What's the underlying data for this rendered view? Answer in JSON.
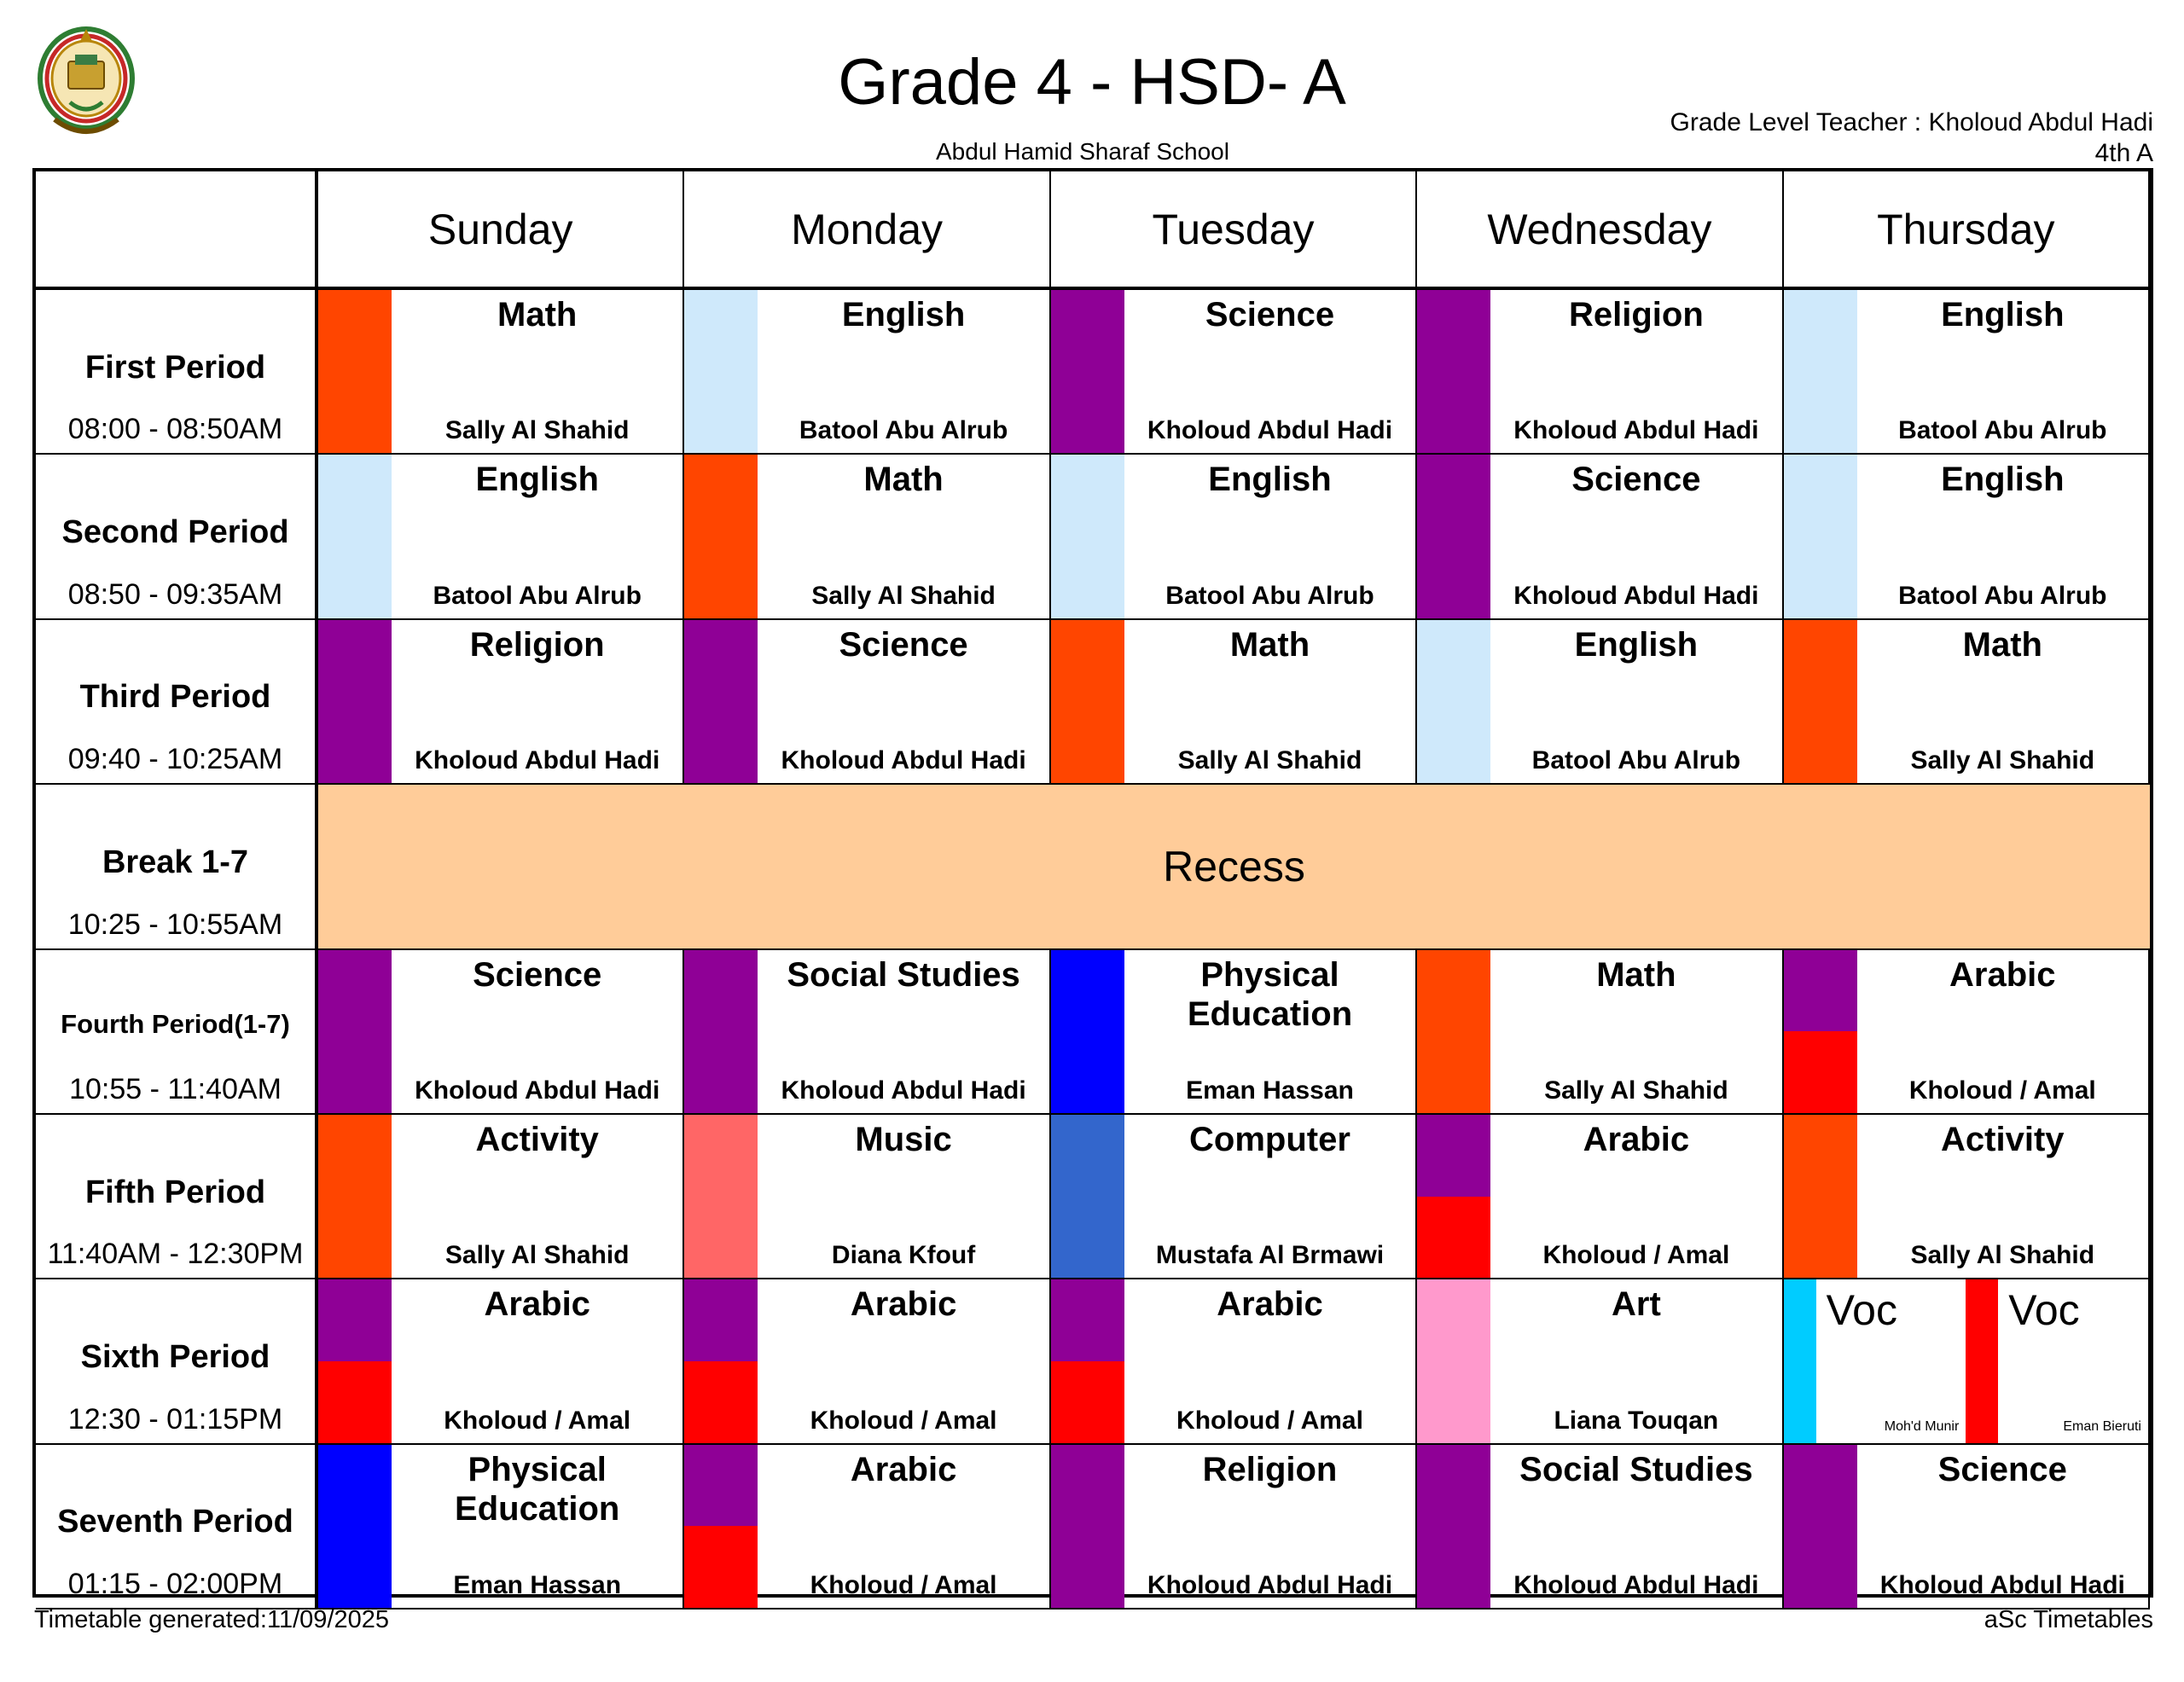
{
  "header": {
    "title": "Grade 4 - HSD- A",
    "school": "Abdul Hamid Sharaf School",
    "teacher": "Grade Level Teacher : Kholoud Abdul Hadi",
    "class_name": "4th A"
  },
  "footer": {
    "generated": "Timetable generated:11/09/2025",
    "credit": "aSc Timetables"
  },
  "colors": {
    "math": "#ff4500",
    "english": "#cfe9fb",
    "purple": "#8f0096",
    "red": "#ff0000",
    "blue": "#0000ff",
    "music": "#ff6666",
    "computer": "#3366cc",
    "art": "#ff99cc",
    "cyan": "#00ccff",
    "recess": "#ffcc99"
  },
  "days": [
    "Sunday",
    "Monday",
    "Tuesday",
    "Wednesday",
    "Thursday"
  ],
  "periods": [
    {
      "name": "First Period",
      "time": "08:00 - 08:50AM"
    },
    {
      "name": "Second Period",
      "time": "08:50 - 09:35AM"
    },
    {
      "name": "Third Period",
      "time": "09:40 - 10:25AM"
    },
    {
      "name": "Break 1-7",
      "time": "10:25 - 10:55AM"
    },
    {
      "name": "Fourth Period(1-7)",
      "time": "10:55 - 11:40AM"
    },
    {
      "name": "Fifth Period",
      "time": "11:40AM - 12:30PM"
    },
    {
      "name": "Sixth Period",
      "time": "12:30 - 01:15PM"
    },
    {
      "name": "Seventh Period",
      "time": "01:15 - 02:00PM"
    }
  ],
  "recess_label": "Recess",
  "schedule": [
    [
      {
        "subject": "Math",
        "teacher": "Sally Al Shahid",
        "colors": [
          "#ff4500"
        ]
      },
      {
        "subject": "English",
        "teacher": "Batool Abu Alrub",
        "colors": [
          "#cfe9fb"
        ]
      },
      {
        "subject": "Science",
        "teacher": "Kholoud Abdul Hadi",
        "colors": [
          "#8f0096"
        ]
      },
      {
        "subject": "Religion",
        "teacher": "Kholoud Abdul Hadi",
        "colors": [
          "#8f0096"
        ]
      },
      {
        "subject": "English",
        "teacher": "Batool Abu Alrub",
        "colors": [
          "#cfe9fb"
        ]
      }
    ],
    [
      {
        "subject": "English",
        "teacher": "Batool Abu Alrub",
        "colors": [
          "#cfe9fb"
        ]
      },
      {
        "subject": "Math",
        "teacher": "Sally Al Shahid",
        "colors": [
          "#ff4500"
        ]
      },
      {
        "subject": "English",
        "teacher": "Batool Abu Alrub",
        "colors": [
          "#cfe9fb"
        ]
      },
      {
        "subject": "Science",
        "teacher": "Kholoud Abdul Hadi",
        "colors": [
          "#8f0096"
        ]
      },
      {
        "subject": "English",
        "teacher": "Batool Abu Alrub",
        "colors": [
          "#cfe9fb"
        ]
      }
    ],
    [
      {
        "subject": "Religion",
        "teacher": "Kholoud Abdul Hadi",
        "colors": [
          "#8f0096"
        ]
      },
      {
        "subject": "Science",
        "teacher": "Kholoud Abdul Hadi",
        "colors": [
          "#8f0096"
        ]
      },
      {
        "subject": "Math",
        "teacher": "Sally Al Shahid",
        "colors": [
          "#ff4500"
        ]
      },
      {
        "subject": "English",
        "teacher": "Batool Abu Alrub",
        "colors": [
          "#cfe9fb"
        ]
      },
      {
        "subject": "Math",
        "teacher": "Sally Al Shahid",
        "colors": [
          "#ff4500"
        ]
      }
    ],
    null,
    [
      {
        "subject": "Science",
        "teacher": "Kholoud Abdul Hadi",
        "colors": [
          "#8f0096"
        ]
      },
      {
        "subject": "Social Studies",
        "teacher": "Kholoud Abdul Hadi",
        "colors": [
          "#8f0096"
        ]
      },
      {
        "subject": "Physical\nEducation",
        "teacher": "Eman Hassan",
        "colors": [
          "#0000ff"
        ]
      },
      {
        "subject": "Math",
        "teacher": "Sally Al Shahid",
        "colors": [
          "#ff4500"
        ]
      },
      {
        "subject": "Arabic",
        "teacher": "Kholoud / Amal",
        "colors": [
          "#8f0096",
          "#ff0000"
        ]
      }
    ],
    [
      {
        "subject": "Activity",
        "teacher": "Sally Al Shahid",
        "colors": [
          "#ff4500"
        ]
      },
      {
        "subject": "Music",
        "teacher": "Diana Kfouf",
        "colors": [
          "#ff6666"
        ]
      },
      {
        "subject": "Computer",
        "teacher": "Mustafa Al Brmawi",
        "colors": [
          "#3366cc"
        ]
      },
      {
        "subject": "Arabic",
        "teacher": "Kholoud / Amal",
        "colors": [
          "#8f0096",
          "#ff0000"
        ]
      },
      {
        "subject": "Activity",
        "teacher": "Sally Al Shahid",
        "colors": [
          "#ff4500"
        ]
      }
    ],
    [
      {
        "subject": "Arabic",
        "teacher": "Kholoud / Amal",
        "colors": [
          "#8f0096",
          "#ff0000"
        ]
      },
      {
        "subject": "Arabic",
        "teacher": "Kholoud / Amal",
        "colors": [
          "#8f0096",
          "#ff0000"
        ]
      },
      {
        "subject": "Arabic",
        "teacher": "Kholoud / Amal",
        "colors": [
          "#8f0096",
          "#ff0000"
        ]
      },
      {
        "subject": "Art",
        "teacher": "Liana Touqan",
        "colors": [
          "#ff99cc"
        ]
      },
      {
        "split": [
          {
            "subject": "Voc",
            "teacher": "Moh'd Munir",
            "color": "#00ccff"
          },
          {
            "subject": "Voc",
            "teacher": "Eman Bieruti",
            "color": "#ff0000"
          }
        ]
      }
    ],
    [
      {
        "subject": "Physical\nEducation",
        "teacher": "Eman Hassan",
        "colors": [
          "#0000ff"
        ]
      },
      {
        "subject": "Arabic",
        "teacher": "Kholoud / Amal",
        "colors": [
          "#8f0096",
          "#ff0000"
        ]
      },
      {
        "subject": "Religion",
        "teacher": "Kholoud Abdul Hadi",
        "colors": [
          "#8f0096"
        ]
      },
      {
        "subject": "Social Studies",
        "teacher": "Kholoud Abdul Hadi",
        "colors": [
          "#8f0096"
        ]
      },
      {
        "subject": "Science",
        "teacher": "Kholoud Abdul Hadi",
        "colors": [
          "#8f0096"
        ]
      }
    ]
  ]
}
